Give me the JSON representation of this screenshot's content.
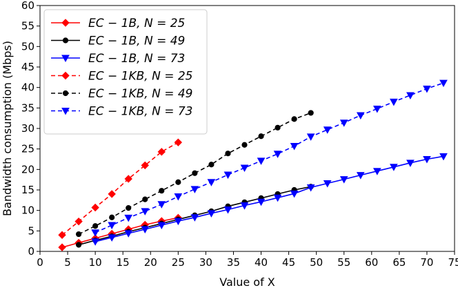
{
  "chart_data": {
    "type": "line",
    "title": "",
    "xlabel": "Value of X",
    "ylabel": "Bandwidth consumption (Mbps)",
    "xlim": [
      0,
      75
    ],
    "ylim": [
      0,
      60
    ],
    "xticks": [
      0,
      5,
      10,
      15,
      20,
      25,
      30,
      35,
      40,
      45,
      50,
      55,
      60,
      65,
      70,
      75
    ],
    "yticks": [
      0,
      5,
      10,
      15,
      20,
      25,
      30,
      35,
      40,
      45,
      50,
      55,
      60
    ],
    "legend_position": "top-left",
    "series": [
      {
        "name": "EC − 1B, N = 25",
        "color": "#ff0000",
        "dash": "solid",
        "marker": "diamond",
        "x": [
          4,
          7,
          10,
          13,
          16,
          19,
          22,
          25
        ],
        "y": [
          1.0,
          2.1,
          3.2,
          4.3,
          5.4,
          6.5,
          7.4,
          8.2
        ]
      },
      {
        "name": "EC − 1B, N = 49",
        "color": "#000000",
        "dash": "solid",
        "marker": "circle",
        "x": [
          7,
          10,
          13,
          16,
          19,
          22,
          25,
          28,
          31,
          34,
          37,
          40,
          43,
          46,
          49
        ],
        "y": [
          1.6,
          2.7,
          3.7,
          4.8,
          5.8,
          6.8,
          7.8,
          8.8,
          9.8,
          11.0,
          12.0,
          13.0,
          14.0,
          15.0,
          15.8
        ]
      },
      {
        "name": "EC − 1B, N = 73",
        "color": "#0000ff",
        "dash": "solid",
        "marker": "triangle-down",
        "x": [
          10,
          13,
          16,
          19,
          22,
          25,
          28,
          31,
          34,
          37,
          40,
          43,
          46,
          49,
          52,
          55,
          58,
          61,
          64,
          67,
          70,
          73
        ],
        "y": [
          2.4,
          3.4,
          4.4,
          5.4,
          6.4,
          7.4,
          8.3,
          9.3,
          10.2,
          11.2,
          12.1,
          13.1,
          14.1,
          15.6,
          16.6,
          17.6,
          18.6,
          19.6,
          20.6,
          21.6,
          22.5,
          23.2
        ]
      },
      {
        "name": "EC − 1KB, N = 25",
        "color": "#ff0000",
        "dash": "dashed",
        "marker": "diamond",
        "x": [
          4,
          7,
          10,
          13,
          16,
          19,
          22,
          25
        ],
        "y": [
          4.0,
          7.3,
          10.7,
          14.0,
          17.7,
          21.0,
          24.3,
          26.6
        ]
      },
      {
        "name": "EC − 1KB, N = 49",
        "color": "#000000",
        "dash": "dashed",
        "marker": "circle",
        "x": [
          7,
          10,
          13,
          16,
          19,
          22,
          25,
          28,
          31,
          34,
          37,
          40,
          43,
          46,
          49
        ],
        "y": [
          4.2,
          6.2,
          8.3,
          10.6,
          12.7,
          14.8,
          16.9,
          19.1,
          21.2,
          23.9,
          26.0,
          28.1,
          30.2,
          32.3,
          33.8
        ]
      },
      {
        "name": "EC − 1KB, N = 73",
        "color": "#0000ff",
        "dash": "dashed",
        "marker": "triangle-down",
        "x": [
          10,
          13,
          16,
          19,
          22,
          25,
          28,
          31,
          34,
          37,
          40,
          43,
          46,
          49,
          52,
          55,
          58,
          61,
          64,
          67,
          70,
          73
        ],
        "y": [
          4.6,
          6.4,
          8.2,
          9.8,
          11.5,
          13.4,
          15.2,
          16.9,
          18.7,
          20.4,
          22.1,
          23.8,
          25.7,
          28.0,
          29.7,
          31.4,
          33.2,
          34.8,
          36.5,
          38.1,
          39.7,
          41.1
        ]
      }
    ],
    "legend_entries": [
      {
        "prefix": "EC − 1B,",
        "n": "N = 25"
      },
      {
        "prefix": "EC − 1B,",
        "n": "N = 49"
      },
      {
        "prefix": "EC − 1B,",
        "n": "N = 73"
      },
      {
        "prefix": "EC − 1KB,",
        "n": "N = 25"
      },
      {
        "prefix": "EC − 1KB,",
        "n": "N = 49"
      },
      {
        "prefix": "EC − 1KB,",
        "n": "N = 73"
      }
    ]
  }
}
